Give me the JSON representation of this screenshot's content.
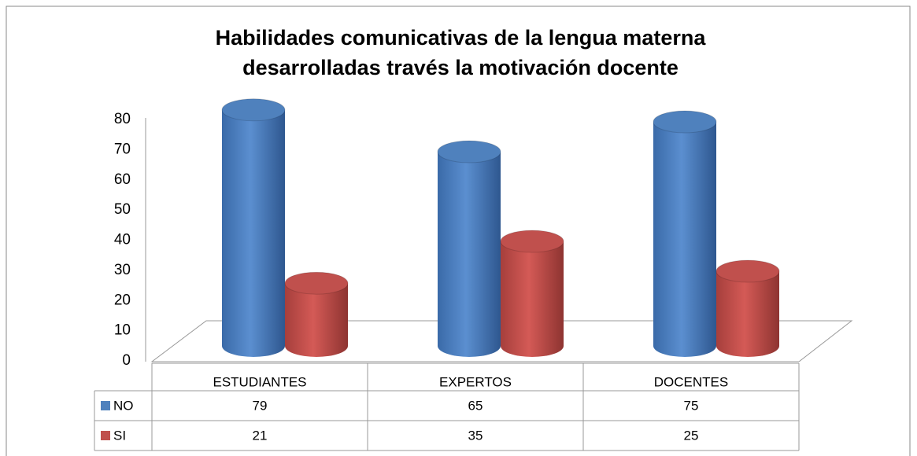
{
  "chart_data": {
    "type": "bar3d",
    "title": [
      "Habilidades comunicativas de la lengua materna",
      "desarrolladas través la motivación docente"
    ],
    "categories": [
      "ESTUDIANTES",
      "EXPERTOS",
      "DOCENTES"
    ],
    "series": [
      {
        "name": "NO",
        "color": "#4f81bd",
        "values": [
          79,
          65,
          75
        ]
      },
      {
        "name": "SI",
        "color": "#c0504d",
        "values": [
          21,
          35,
          25
        ]
      }
    ],
    "ylim": [
      0,
      80
    ],
    "yticks": [
      0,
      10,
      20,
      30,
      40,
      50,
      60,
      70,
      80
    ],
    "grid": false,
    "data_table": true
  }
}
